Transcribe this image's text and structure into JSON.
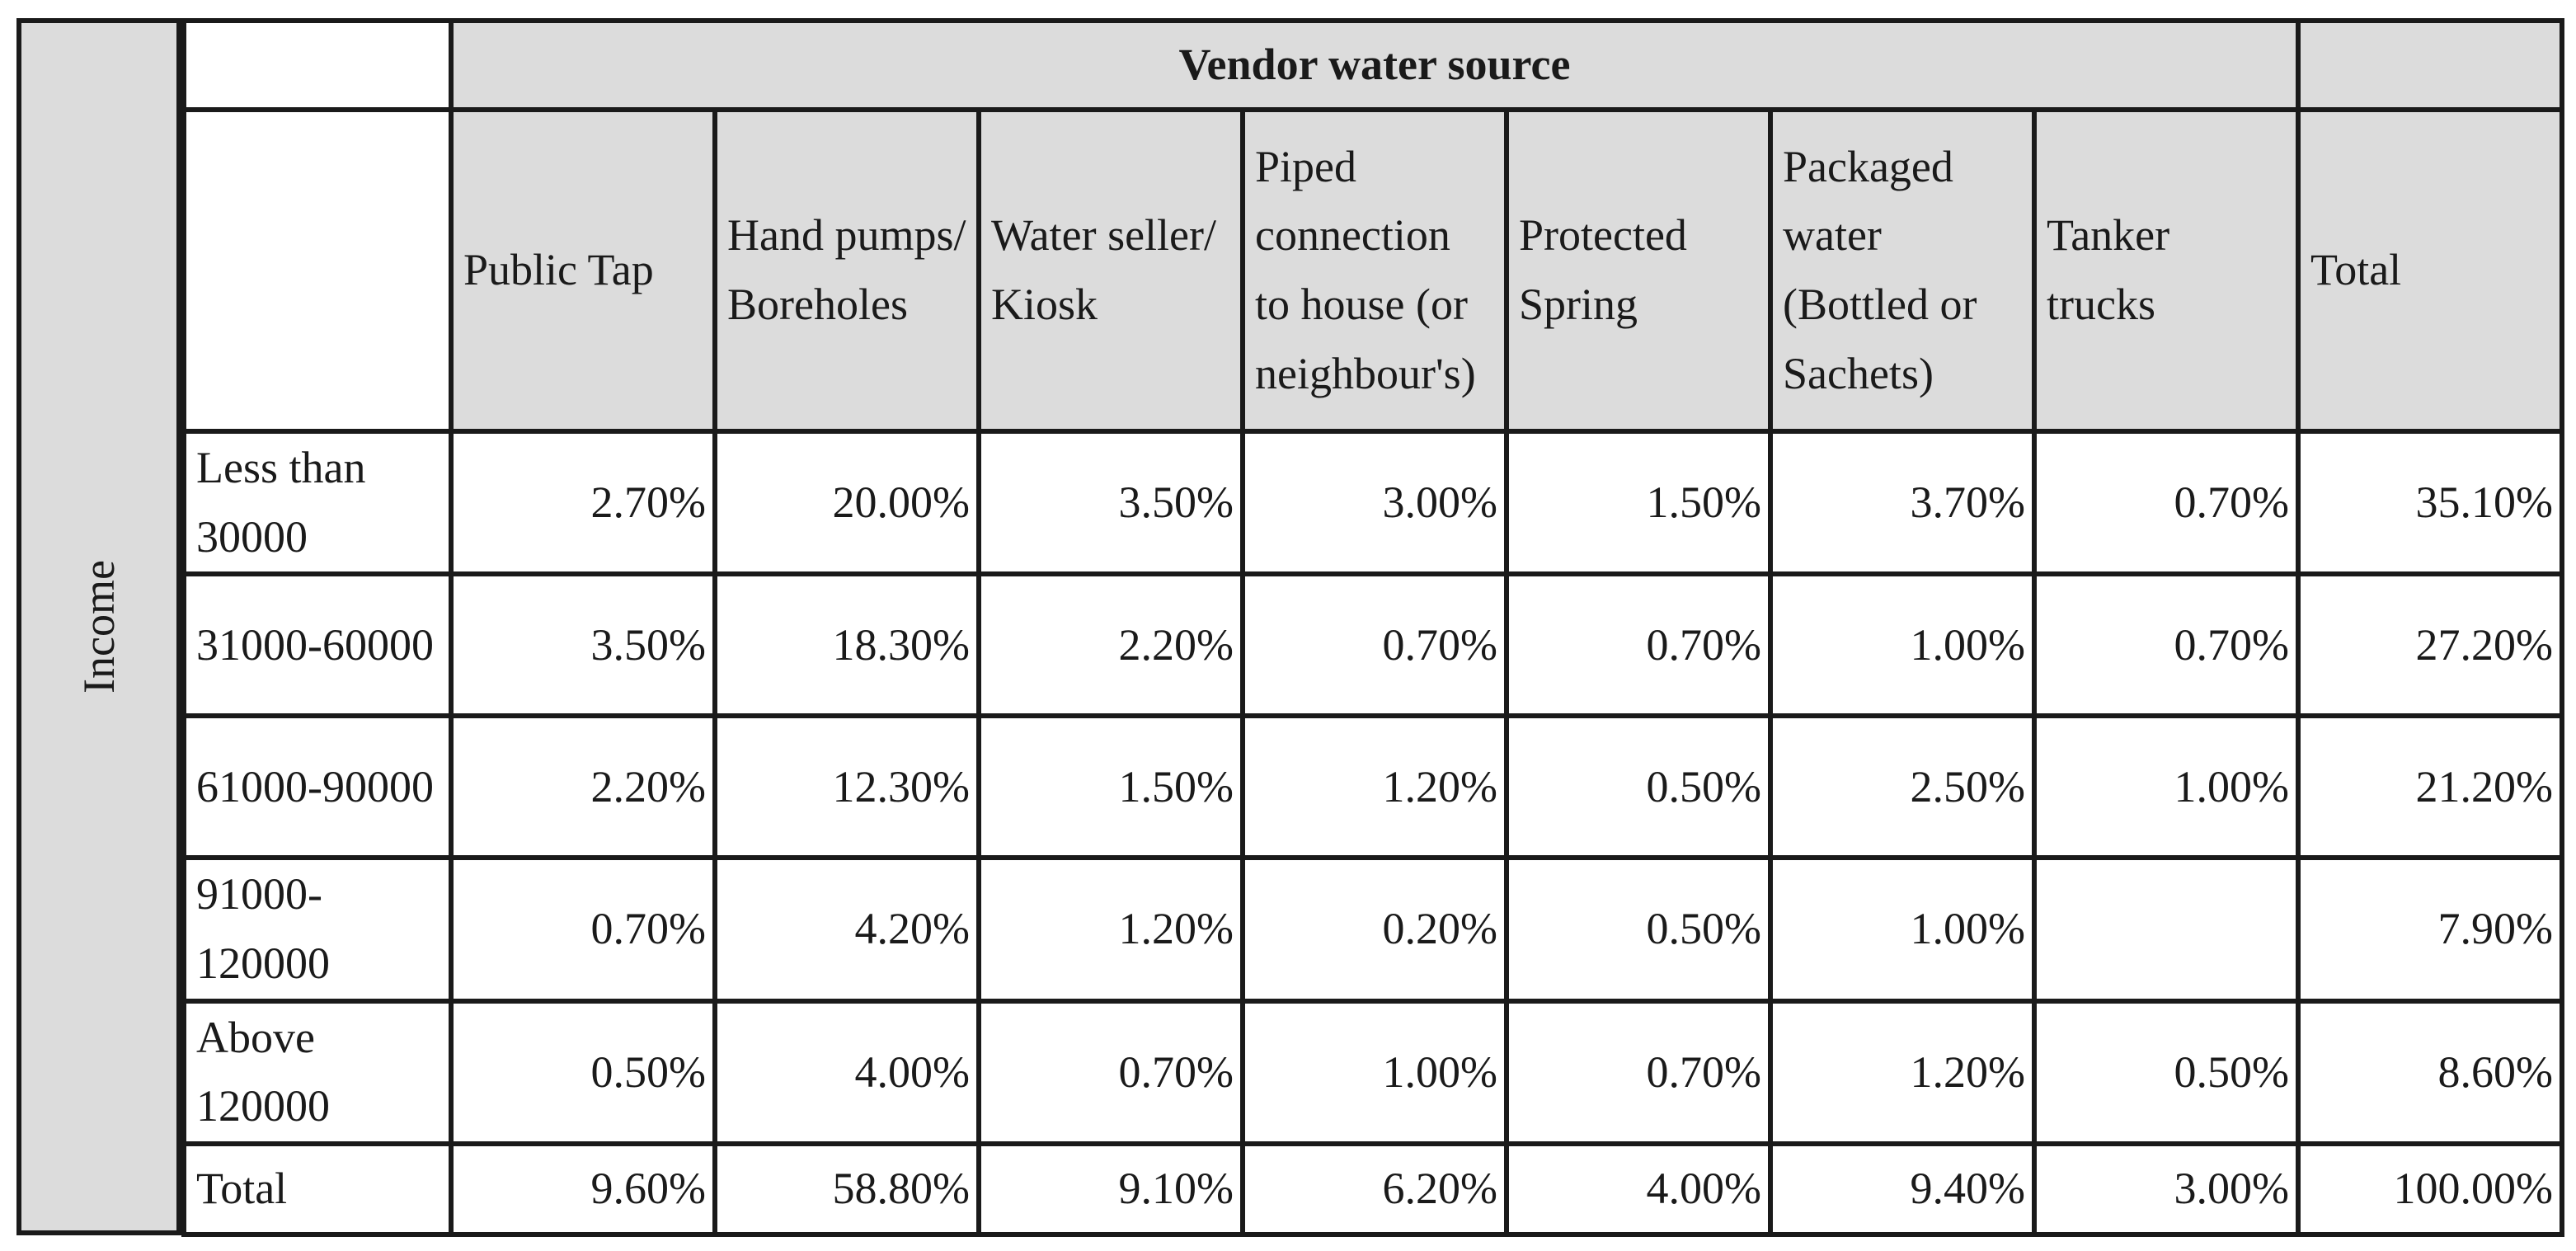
{
  "chart_data": {
    "type": "table",
    "side_label": "Income",
    "title": "Vendor water source",
    "columns": [
      "Public Tap",
      "Hand pumps/ Boreholes",
      "Water seller/ Kiosk",
      "Piped connection to house (or neighbour's)",
      "Protected Spring",
      "Packaged water (Bottled or Sachets)",
      "Tanker trucks",
      "Total"
    ],
    "rows": [
      {
        "label": "Less than 30000",
        "values": [
          "2.70%",
          "20.00%",
          "3.50%",
          "3.00%",
          "1.50%",
          "3.70%",
          "0.70%",
          "35.10%"
        ]
      },
      {
        "label": "31000-60000",
        "values": [
          "3.50%",
          "18.30%",
          "2.20%",
          "0.70%",
          "0.70%",
          "1.00%",
          "0.70%",
          "27.20%"
        ]
      },
      {
        "label": "61000-90000",
        "values": [
          "2.20%",
          "12.30%",
          "1.50%",
          "1.20%",
          "0.50%",
          "2.50%",
          "1.00%",
          "21.20%"
        ]
      },
      {
        "label": "91000-120000",
        "values": [
          "0.70%",
          "4.20%",
          "1.20%",
          "0.20%",
          "0.50%",
          "1.00%",
          "",
          "7.90%"
        ]
      },
      {
        "label": "Above 120000",
        "values": [
          "0.50%",
          "4.00%",
          "0.70%",
          "1.00%",
          "0.70%",
          "1.20%",
          "0.50%",
          "8.60%"
        ]
      },
      {
        "label": "Total",
        "values": [
          "9.60%",
          "58.80%",
          "9.10%",
          "6.20%",
          "4.00%",
          "9.40%",
          "3.00%",
          "100.00%"
        ]
      }
    ]
  }
}
